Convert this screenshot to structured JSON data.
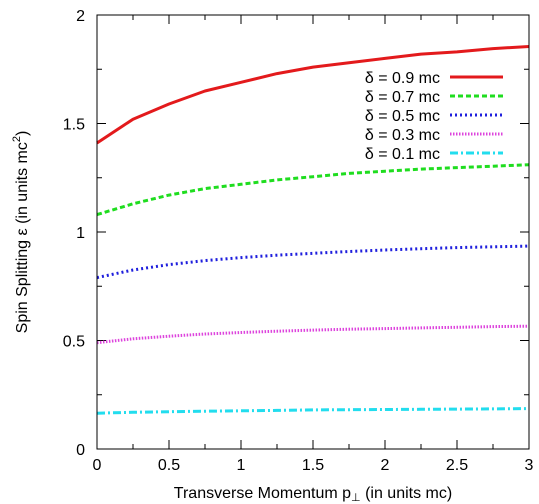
{
  "chart_data": {
    "type": "line",
    "xlabel": "Transverse Momentum p",
    "xlabel_subscript": "⊥",
    "xlabel_units": " (in units mc)",
    "ylabel": "Spin Splitting ε (in units mc",
    "ylabel_superscript": "2",
    "ylabel_close": ")",
    "xlim": [
      0,
      3
    ],
    "ylim": [
      0,
      2
    ],
    "xticks": [
      0,
      0.5,
      1,
      1.5,
      2,
      2.5,
      3
    ],
    "xtick_labels": [
      "0",
      "0.5",
      "1",
      "1.5",
      "2",
      "2.5",
      "3"
    ],
    "yticks": [
      0,
      0.5,
      1,
      1.5,
      2
    ],
    "ytick_labels": [
      "0",
      "0.5",
      "1",
      "1.5",
      "2"
    ],
    "legend_position": "top-right",
    "x": [
      0,
      0.25,
      0.5,
      0.75,
      1,
      1.25,
      1.5,
      1.75,
      2,
      2.25,
      2.5,
      2.75,
      3
    ],
    "series": [
      {
        "name": "δ = 0.9 mc",
        "color": "#e31a1c",
        "dash": "solid",
        "values": [
          1.41,
          1.52,
          1.59,
          1.65,
          1.69,
          1.73,
          1.76,
          1.78,
          1.8,
          1.82,
          1.83,
          1.845,
          1.855
        ]
      },
      {
        "name": "δ = 0.7 mc",
        "color": "#1fdd1f",
        "dash": "dashed",
        "values": [
          1.08,
          1.13,
          1.17,
          1.2,
          1.22,
          1.24,
          1.255,
          1.27,
          1.28,
          1.29,
          1.297,
          1.303,
          1.31
        ]
      },
      {
        "name": "δ = 0.5 mc",
        "color": "#1f1fdd",
        "dash": "dotted",
        "values": [
          0.79,
          0.825,
          0.85,
          0.868,
          0.882,
          0.893,
          0.902,
          0.91,
          0.917,
          0.923,
          0.928,
          0.932,
          0.935
        ]
      },
      {
        "name": "δ = 0.3 mc",
        "color": "#dd44dd",
        "dash": "fine-dotted",
        "values": [
          0.49,
          0.508,
          0.52,
          0.53,
          0.537,
          0.543,
          0.548,
          0.552,
          0.555,
          0.558,
          0.561,
          0.564,
          0.566
        ]
      },
      {
        "name": "δ = 0.1 mc",
        "color": "#22ddee",
        "dash": "dash-dot",
        "values": [
          0.165,
          0.169,
          0.172,
          0.174,
          0.176,
          0.178,
          0.18,
          0.181,
          0.182,
          0.183,
          0.184,
          0.185,
          0.186
        ]
      }
    ]
  }
}
